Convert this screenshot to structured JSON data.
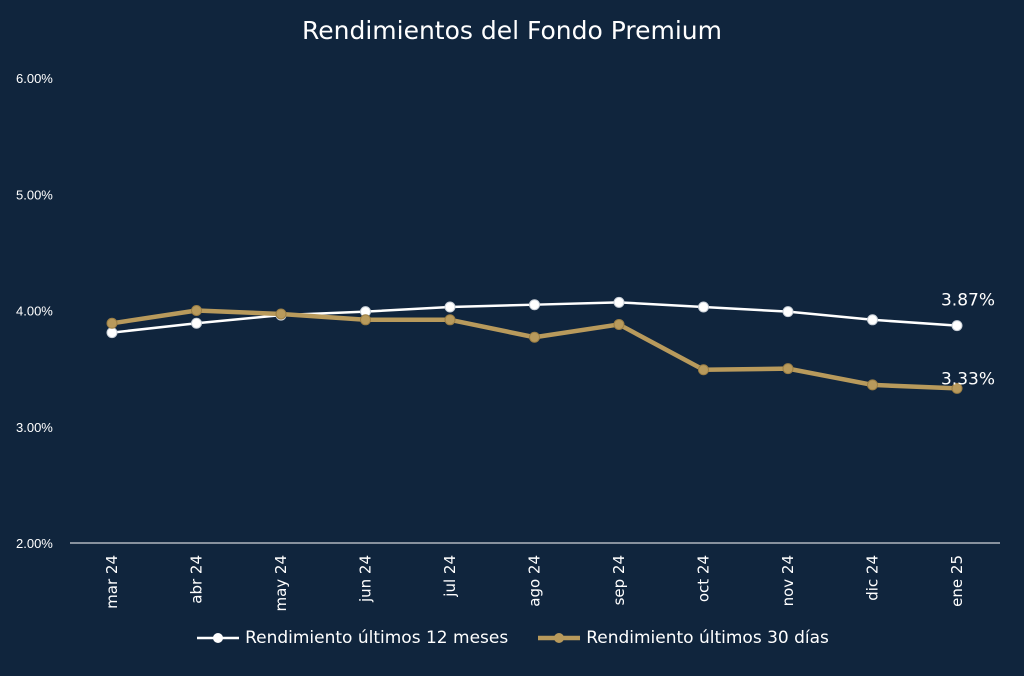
{
  "colors": {
    "background": "#10253d",
    "series_12m": "#ffffff",
    "series_30d": "#b89a5c",
    "axis": "#ffffff"
  },
  "chart_data": {
    "type": "line",
    "title": "Rendimientos del Fondo Premium",
    "xlabel": "",
    "ylabel": "",
    "categories": [
      "mar 24",
      "abr 24",
      "may 24",
      "jun 24",
      "jul 24",
      "ago 24",
      "sep 24",
      "oct 24",
      "nov 24",
      "dic 24",
      "ene 25"
    ],
    "ylim": [
      2.0,
      6.0
    ],
    "yticks": [
      "2.00%",
      "3.00%",
      "4.00%",
      "5.00%",
      "6.00%"
    ],
    "grid": false,
    "legend_position": "bottom",
    "series": [
      {
        "name": "Rendimiento últimos 12 meses",
        "color": "#ffffff",
        "values": [
          3.81,
          3.89,
          3.96,
          3.99,
          4.03,
          4.05,
          4.07,
          4.03,
          3.99,
          3.92,
          3.87
        ],
        "end_label": "3.87%"
      },
      {
        "name": "Rendimiento últimos 30 días",
        "color": "#b89a5c",
        "values": [
          3.89,
          4.0,
          3.97,
          3.92,
          3.92,
          3.77,
          3.88,
          3.49,
          3.5,
          3.36,
          3.33
        ],
        "end_label": "3.33%"
      }
    ]
  }
}
